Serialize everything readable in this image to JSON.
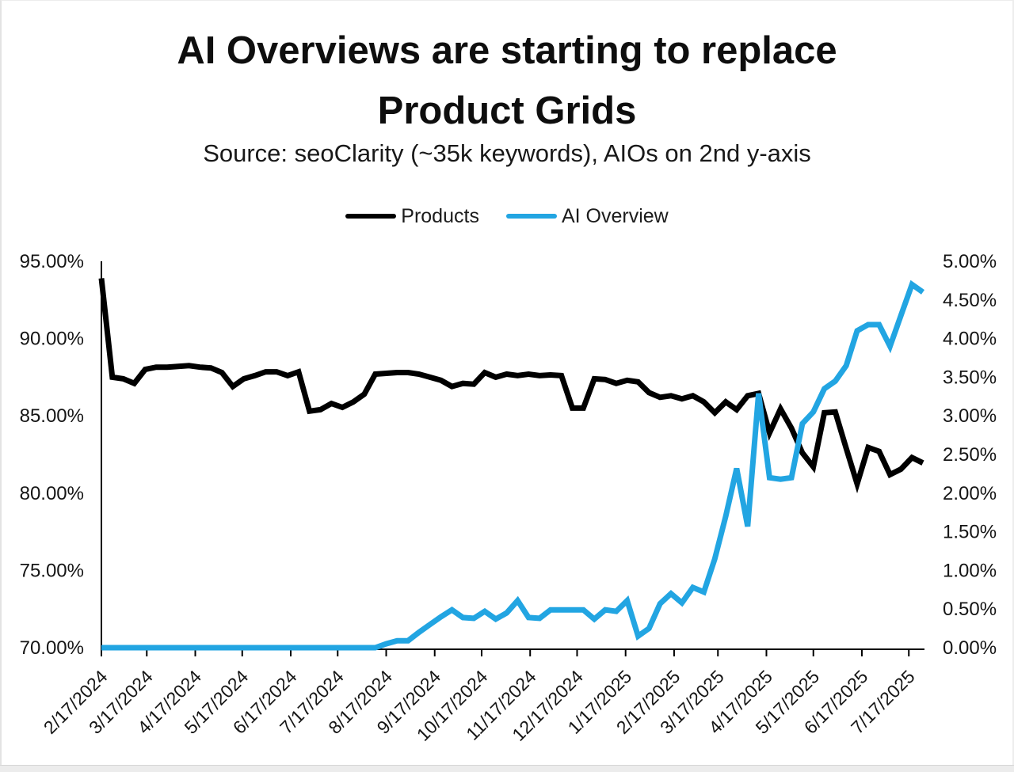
{
  "page": {
    "title_lines": [
      "AI Overviews are starting to replace",
      "Product Grids"
    ],
    "subtitle": "Source: seoClarity (~35k keywords), AIOs on 2nd y-axis"
  },
  "legend": [
    {
      "label": "Products",
      "color": "#000000"
    },
    {
      "label": "AI Overview",
      "color": "#22a5e2"
    }
  ],
  "chart_data": {
    "type": "line",
    "title": "AI Overviews are starting to replace Product Grids",
    "subtitle": "Source: seoClarity (~35k keywords), AIOs on 2nd y-axis",
    "grid": false,
    "legend_position": "top",
    "x": [
      "2/17/2024",
      "2/24/2024",
      "3/2/2024",
      "3/9/2024",
      "3/16/2024",
      "3/23/2024",
      "3/30/2024",
      "4/6/2024",
      "4/13/2024",
      "4/20/2024",
      "4/27/2024",
      "5/4/2024",
      "5/11/2024",
      "5/18/2024",
      "5/25/2024",
      "6/1/2024",
      "6/8/2024",
      "6/15/2024",
      "6/22/2024",
      "6/29/2024",
      "7/6/2024",
      "7/13/2024",
      "7/20/2024",
      "7/27/2024",
      "8/3/2024",
      "8/10/2024",
      "8/17/2024",
      "8/24/2024",
      "8/31/2024",
      "9/7/2024",
      "9/14/2024",
      "9/21/2024",
      "9/28/2024",
      "10/5/2024",
      "10/12/2024",
      "10/19/2024",
      "10/26/2024",
      "11/2/2024",
      "11/9/2024",
      "11/16/2024",
      "11/23/2024",
      "11/30/2024",
      "12/7/2024",
      "12/14/2024",
      "12/21/2024",
      "12/28/2024",
      "1/4/2025",
      "1/11/2025",
      "1/18/2025",
      "1/25/2025",
      "2/1/2025",
      "2/8/2025",
      "2/15/2025",
      "2/22/2025",
      "3/1/2025",
      "3/8/2025",
      "3/15/2025",
      "3/22/2025",
      "3/29/2025",
      "4/5/2025",
      "4/12/2025",
      "4/19/2025",
      "4/26/2025",
      "5/3/2025",
      "5/10/2025",
      "5/17/2025",
      "5/24/2025",
      "5/31/2025",
      "6/7/2025",
      "6/14/2025",
      "6/21/2025",
      "6/28/2025",
      "7/5/2025",
      "7/12/2025",
      "7/19/2025",
      "7/26/2025"
    ],
    "x_tick_labels": [
      "2/17/2024",
      "3/17/2024",
      "4/17/2024",
      "5/17/2024",
      "6/17/2024",
      "7/17/2024",
      "8/17/2024",
      "9/17/2024",
      "10/17/2024",
      "11/17/2024",
      "12/17/2024",
      "1/17/2025",
      "2/17/2025",
      "3/17/2025",
      "4/17/2025",
      "5/17/2025",
      "6/17/2025",
      "7/17/2025"
    ],
    "left_axis": {
      "min": 70,
      "max": 95,
      "step": 5,
      "suffix": "%",
      "decimals": 2
    },
    "right_axis": {
      "min": 0,
      "max": 5,
      "step": 0.5,
      "suffix": "%",
      "decimals": 2
    },
    "series": [
      {
        "name": "Products",
        "axis": "left",
        "color": "#000000",
        "values": [
          93.9,
          87.5,
          87.4,
          87.1,
          88.0,
          88.15,
          88.15,
          88.2,
          88.25,
          88.15,
          88.1,
          87.8,
          86.9,
          87.4,
          87.6,
          87.85,
          87.85,
          87.6,
          87.85,
          85.3,
          85.4,
          85.8,
          85.55,
          85.9,
          86.4,
          87.7,
          87.75,
          87.8,
          87.8,
          87.7,
          87.5,
          87.3,
          86.9,
          87.1,
          87.05,
          87.8,
          87.5,
          87.7,
          87.6,
          87.7,
          87.6,
          87.65,
          87.6,
          85.5,
          85.5,
          87.4,
          87.35,
          87.1,
          87.3,
          87.2,
          86.5,
          86.2,
          86.3,
          86.1,
          86.3,
          85.9,
          85.2,
          85.9,
          85.4,
          86.3,
          86.45,
          83.9,
          85.45,
          84.2,
          82.6,
          81.7,
          85.2,
          85.25,
          82.9,
          80.6,
          82.95,
          82.7,
          81.2,
          81.55,
          82.3,
          81.95
        ]
      },
      {
        "name": "AI Overview",
        "axis": "right",
        "color": "#22a5e2",
        "values": [
          0,
          0,
          0,
          0,
          0,
          0,
          0,
          0,
          0,
          0,
          0,
          0,
          0,
          0,
          0,
          0,
          0,
          0,
          0,
          0,
          0,
          0,
          0,
          0,
          0,
          0,
          0.05,
          0.09,
          0.09,
          0.2,
          0.3,
          0.4,
          0.49,
          0.39,
          0.38,
          0.47,
          0.37,
          0.45,
          0.61,
          0.39,
          0.38,
          0.49,
          0.49,
          0.49,
          0.49,
          0.37,
          0.49,
          0.47,
          0.61,
          0.15,
          0.25,
          0.57,
          0.7,
          0.58,
          0.78,
          0.72,
          1.15,
          1.7,
          2.32,
          1.57,
          3.29,
          2.2,
          2.18,
          2.2,
          2.9,
          3.05,
          3.35,
          3.45,
          3.65,
          4.1,
          4.18,
          4.18,
          3.9,
          4.3,
          4.7,
          4.6
        ]
      }
    ]
  }
}
